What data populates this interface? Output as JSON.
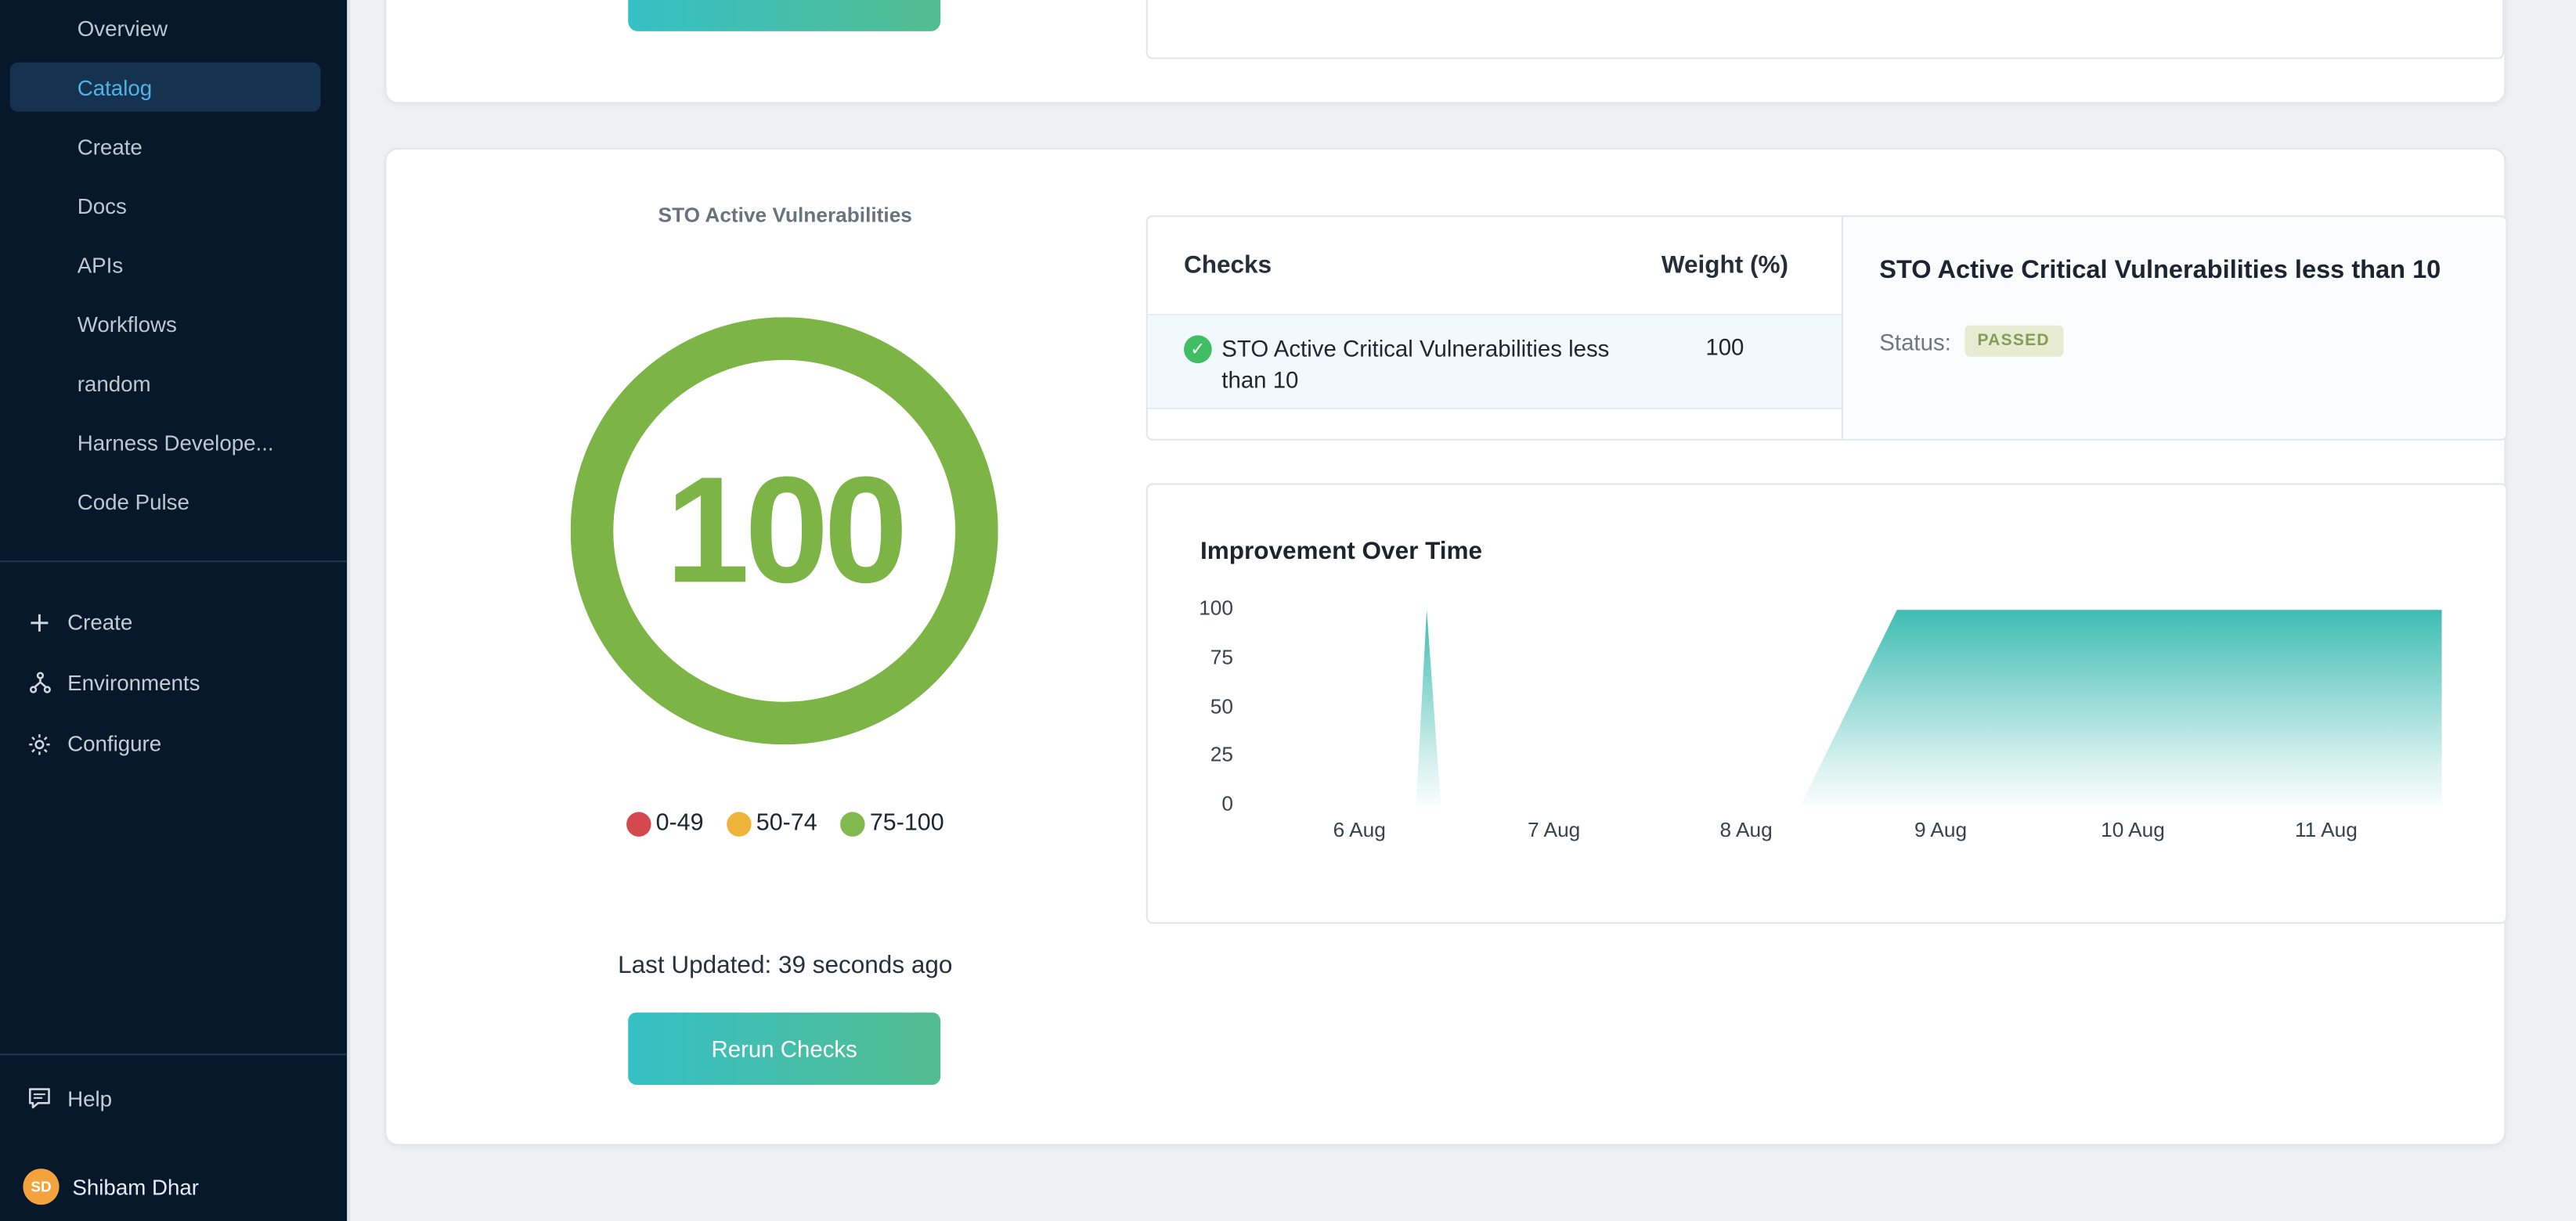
{
  "sidebar": {
    "nav": [
      {
        "label": "Overview",
        "active": false
      },
      {
        "label": "Catalog",
        "active": true
      },
      {
        "label": "Create",
        "active": false
      },
      {
        "label": "Docs",
        "active": false
      },
      {
        "label": "APIs",
        "active": false
      },
      {
        "label": "Workflows",
        "active": false
      },
      {
        "label": "random",
        "active": false
      },
      {
        "label": "Harness Develope...",
        "active": false
      },
      {
        "label": "Code Pulse",
        "active": false
      }
    ],
    "secondary": [
      {
        "label": "Create",
        "icon": "plus-icon"
      },
      {
        "label": "Environments",
        "icon": "environments-icon"
      },
      {
        "label": "Configure",
        "icon": "gear-icon"
      }
    ],
    "help_label": "Help",
    "user": {
      "initials": "SD",
      "name": "Shibam Dhar",
      "avatar_color": "#f2a33c"
    }
  },
  "scorecard": {
    "title": "STO Active Vulnerabilities",
    "score": "100",
    "score_color": "#7cb446",
    "legend": [
      {
        "label": "0-49",
        "color": "#d5484f"
      },
      {
        "label": "50-74",
        "color": "#eeb43a"
      },
      {
        "label": "75-100",
        "color": "#82b94e"
      }
    ],
    "last_updated": "Last Updated: 39 seconds ago",
    "rerun_label": "Rerun Checks"
  },
  "checks_table": {
    "col_checks": "Checks",
    "col_weight": "Weight (%)",
    "rows": [
      {
        "check": "STO Active Critical Vulnerabilities less than 10",
        "weight": "100",
        "passed": true
      }
    ]
  },
  "check_detail": {
    "title": "STO Active Critical Vulnerabilities less than 10",
    "status_label": "Status:",
    "status_value": "PASSED"
  },
  "chart_data": {
    "type": "area",
    "title": "Improvement Over Time",
    "ylabel": "",
    "xlabel": "",
    "ylim": [
      0,
      100
    ],
    "grid": false,
    "legend_position": "none",
    "fill_color": "#2eb7ac",
    "y_ticks": [
      100,
      75,
      50,
      25,
      0
    ],
    "x_ticks": [
      {
        "label": "6 Aug",
        "pos": 0.082
      },
      {
        "label": "7 Aug",
        "pos": 0.247
      },
      {
        "label": "8 Aug",
        "pos": 0.41
      },
      {
        "label": "9 Aug",
        "pos": 0.575
      },
      {
        "label": "10 Aug",
        "pos": 0.738
      },
      {
        "label": "11 Aug",
        "pos": 0.902
      }
    ],
    "points": [
      {
        "x": 0.0,
        "v": 0
      },
      {
        "x": 0.13,
        "v": 0
      },
      {
        "x": 0.139,
        "v": 100
      },
      {
        "x": 0.151,
        "v": 0
      },
      {
        "x": 0.456,
        "v": 0
      },
      {
        "x": 0.538,
        "v": 100
      },
      {
        "x": 1.0,
        "v": 100
      }
    ]
  }
}
